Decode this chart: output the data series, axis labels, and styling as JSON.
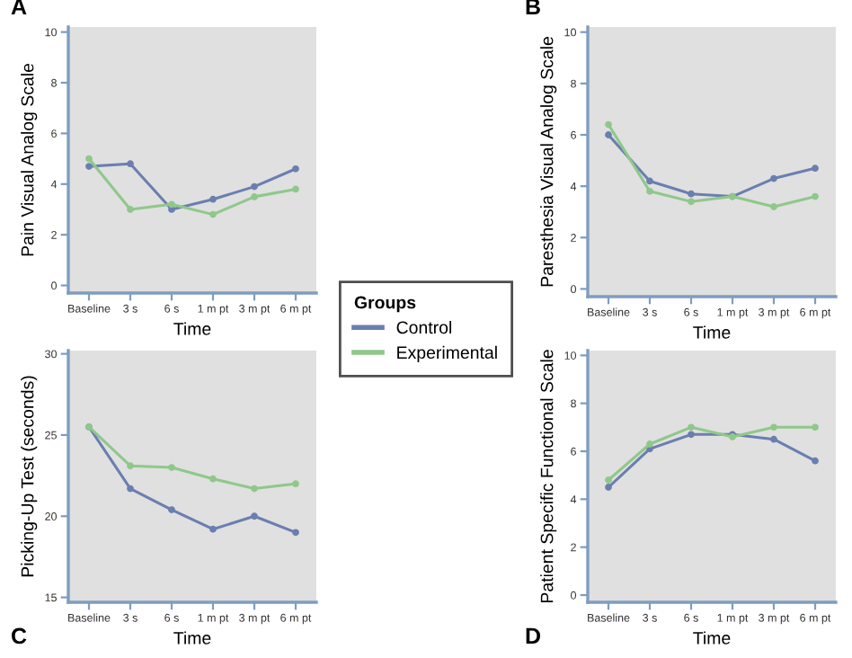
{
  "chart_data": [
    {
      "type": "line",
      "xlabel": "Time",
      "ylabel": "Pain Visual Analog Scale",
      "annotations": [
        "A"
      ],
      "categories": [
        "Baseline",
        "3 s",
        "6 s",
        "1 m pt",
        "3 m pt",
        "6 m pt"
      ],
      "ylim": [
        -0.3,
        10.2
      ],
      "yticks": [
        0,
        2,
        4,
        6,
        8,
        10
      ],
      "marker": "circle",
      "legend": "bottom right",
      "legend_title": "Groups",
      "series": [
        {
          "name": "Control",
          "color": "#6a7fb0",
          "values": [
            4.7,
            4.8,
            3.0,
            3.4,
            3.9,
            4.6
          ]
        },
        {
          "name": "Experimental",
          "color": "#8fc88a",
          "values": [
            5.0,
            3.0,
            3.2,
            2.8,
            3.5,
            3.8
          ]
        }
      ]
    },
    {
      "type": "line",
      "xlabel": "Time",
      "ylabel": "Paresthesia Visual Analog Scale",
      "annotations": [
        "B"
      ],
      "categories": [
        "Baseline",
        "3 s",
        "6 s",
        "1 m pt",
        "3 m pt",
        "6 m pt"
      ],
      "ylim": [
        -0.3,
        10.2
      ],
      "yticks": [
        0,
        2,
        4,
        6,
        8,
        10
      ],
      "marker": "circle",
      "series": [
        {
          "color": "#6a7fb0",
          "values": [
            6.0,
            4.2,
            3.7,
            3.6,
            4.3,
            4.7
          ]
        },
        {
          "color": "#8fc88a",
          "values": [
            6.4,
            3.8,
            3.4,
            3.6,
            3.2,
            3.6
          ]
        }
      ]
    },
    {
      "type": "line",
      "xlabel": "Time",
      "ylabel": "Picking-Up Test (seconds)",
      "annotations": [
        "C"
      ],
      "categories": [
        "Baseline",
        "3 s",
        "6 s",
        "1 m pt",
        "3 m pt",
        "6 m pt"
      ],
      "ylim": [
        14.7,
        30.2
      ],
      "yticks": [
        15,
        20,
        25,
        30
      ],
      "marker": "circle",
      "series": [
        {
          "color": "#6a7fb0",
          "values": [
            25.5,
            21.7,
            20.4,
            19.2,
            20.0,
            19.0
          ]
        },
        {
          "color": "#8fc88a",
          "values": [
            25.5,
            23.1,
            23.0,
            22.3,
            21.7,
            22.0
          ]
        }
      ]
    },
    {
      "type": "line",
      "xlabel": "Time",
      "ylabel": "Patient Specific Functional Scale",
      "annotations": [
        "D"
      ],
      "categories": [
        "Baseline",
        "3 s",
        "6 s",
        "1 m pt",
        "3 m pt",
        "6 m pt"
      ],
      "ylim": [
        -0.3,
        10.2
      ],
      "yticks": [
        0,
        2,
        4,
        6,
        8,
        10
      ],
      "marker": "circle",
      "series": [
        {
          "color": "#6a7fb0",
          "values": [
            4.5,
            6.1,
            6.7,
            6.7,
            6.5,
            5.6
          ]
        },
        {
          "color": "#8fc88a",
          "values": [
            4.8,
            6.3,
            7.0,
            6.6,
            7.0,
            7.0
          ]
        }
      ]
    }
  ]
}
